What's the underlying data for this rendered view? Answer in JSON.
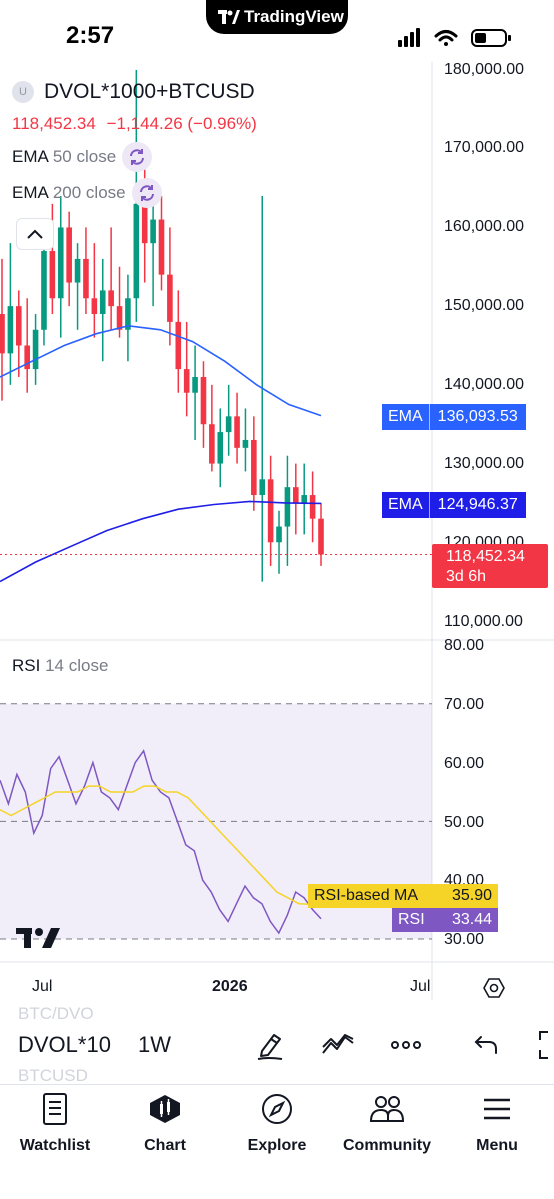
{
  "status_bar": {
    "time": "2:57",
    "brand": "TradingView"
  },
  "symbol": {
    "name": "DVOL*1000+BTCUSD",
    "price": "118,452.34",
    "change": "−1,144.26 (−0.96%)",
    "change_color": "#f23645"
  },
  "indicators": [
    {
      "name": "EMA",
      "param": "50 close"
    },
    {
      "name": "EMA",
      "param": "200 close"
    }
  ],
  "price_axis": [
    "180,000.00",
    "170,000.00",
    "160,000.00",
    "150,000.00",
    "140,000.00",
    "130,000.00",
    "120,000.00",
    "110,000.00"
  ],
  "price_tags": {
    "ema50": {
      "label": "EMA",
      "value": "136,093.53",
      "color": "#2962ff"
    },
    "ema200": {
      "label": "EMA",
      "value": "124,946.37",
      "color": "#1e1ee8"
    },
    "last": {
      "value": "118,452.34",
      "countdown": "3d 6h",
      "color": "#f23645"
    }
  },
  "rsi": {
    "title": "RSI",
    "param": "14 close",
    "axis": [
      "80.00",
      "70.00",
      "60.00",
      "50.00",
      "40.00",
      "30.00"
    ],
    "ma_tag": {
      "label": "RSI-based MA",
      "value": "35.90",
      "color": "#f5d327"
    },
    "rsi_tag": {
      "label": "RSI",
      "value": "33.44",
      "color": "#7e57c2"
    }
  },
  "time_axis": [
    "Jul",
    "2026",
    "Jul"
  ],
  "chart_data": {
    "type": "candlestick",
    "candle_colors": {
      "up": "#089981",
      "down": "#f23645"
    },
    "ema_colors": {
      "ema50": "#2962ff",
      "ema200": "#1e1ee8"
    },
    "rsi_colors": {
      "rsi": "#7e57c2",
      "ma": "#f5d327"
    },
    "ylim": [
      107000,
      182000
    ],
    "rsi_ylim": [
      26,
      82
    ],
    "candles": [
      [
        149000,
        156000,
        138000,
        144000
      ],
      [
        144000,
        158000,
        140000,
        150000
      ],
      [
        150000,
        152000,
        141000,
        145000
      ],
      [
        145000,
        151000,
        139000,
        142000
      ],
      [
        142000,
        149000,
        140000,
        147000
      ],
      [
        147000,
        160000,
        145000,
        157000
      ],
      [
        157000,
        163000,
        149000,
        151000
      ],
      [
        151000,
        164000,
        146000,
        160000
      ],
      [
        160000,
        162000,
        150000,
        153000
      ],
      [
        153000,
        158000,
        147000,
        156000
      ],
      [
        156000,
        160000,
        149000,
        151000
      ],
      [
        151000,
        158000,
        146000,
        149000
      ],
      [
        149000,
        156000,
        143000,
        152000
      ],
      [
        152000,
        160000,
        147000,
        150000
      ],
      [
        150000,
        155000,
        146000,
        147000
      ],
      [
        147000,
        154000,
        143000,
        151000
      ],
      [
        151000,
        180000,
        148000,
        163000
      ],
      [
        163000,
        168000,
        153000,
        158000
      ],
      [
        158000,
        163000,
        150000,
        161000
      ],
      [
        161000,
        164000,
        152000,
        154000
      ],
      [
        154000,
        160000,
        145000,
        148000
      ],
      [
        148000,
        152000,
        139000,
        142000
      ],
      [
        142000,
        148000,
        136000,
        139000
      ],
      [
        139000,
        145000,
        133000,
        141000
      ],
      [
        141000,
        143000,
        132000,
        135000
      ],
      [
        135000,
        140000,
        129000,
        130000
      ],
      [
        130000,
        137000,
        127000,
        134000
      ],
      [
        134000,
        140000,
        131000,
        136000
      ],
      [
        136000,
        139000,
        130000,
        132000
      ],
      [
        132000,
        137000,
        129000,
        133000
      ],
      [
        133000,
        136000,
        124000,
        126000
      ],
      [
        126000,
        164000,
        115000,
        128000
      ],
      [
        128000,
        131000,
        117000,
        120000
      ],
      [
        120000,
        124000,
        116000,
        122000
      ],
      [
        122000,
        131000,
        117000,
        127000
      ],
      [
        127000,
        130000,
        121000,
        125000
      ],
      [
        125000,
        130000,
        121000,
        126000
      ],
      [
        126000,
        129000,
        120000,
        123000
      ],
      [
        123000,
        125000,
        117000,
        118452
      ]
    ],
    "ema50": [
      141000,
      143000,
      145000,
      146500,
      147500,
      147000,
      145500,
      143000,
      140000,
      137500,
      136093
    ],
    "ema200": [
      115000,
      117500,
      119500,
      121500,
      123000,
      124200,
      124800,
      125200,
      125000,
      124946
    ],
    "rsi": [
      57,
      53,
      58,
      55,
      48,
      51,
      59,
      61,
      57,
      53,
      56,
      60,
      55,
      54,
      52,
      56,
      60,
      62,
      57,
      55,
      54,
      50,
      46,
      45,
      40,
      38,
      35,
      33,
      36,
      39,
      37,
      36,
      33,
      31,
      34,
      38,
      37,
      35,
      33.44
    ],
    "rsi_ma": [
      52,
      51,
      52,
      53,
      54,
      55,
      55,
      55,
      56,
      56,
      55,
      55,
      55,
      56,
      56,
      55,
      55,
      54,
      52,
      50,
      48,
      46,
      44,
      42,
      40,
      38,
      37,
      36,
      35.9
    ]
  },
  "toolbar": {
    "symbol_short": "DVOL*10",
    "interval": "1W",
    "ghost_top": "BTC/DVO",
    "ghost_bottom": "BTCUSD"
  },
  "bottom_nav": [
    {
      "label": "Watchlist"
    },
    {
      "label": "Chart"
    },
    {
      "label": "Explore"
    },
    {
      "label": "Community"
    },
    {
      "label": "Menu"
    }
  ]
}
